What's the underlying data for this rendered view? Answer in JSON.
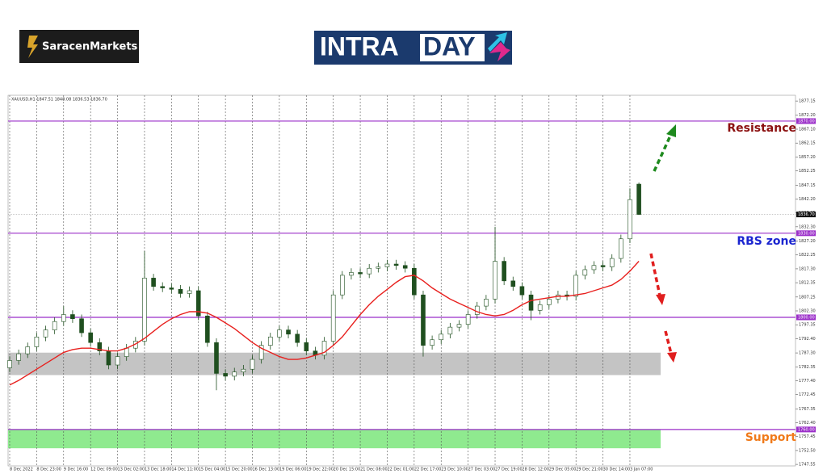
{
  "header": {
    "brand": "SaracenMarkets",
    "banner_left": "INTRA",
    "banner_right": "DAY"
  },
  "chart_data": {
    "type": "candlestick",
    "title": "XAUUSD,H1  1847.51 1848.08 1836.53 1836.70",
    "categories": [
      "8 Dec 2022",
      null,
      null,
      "8 Dec 23:00",
      null,
      null,
      "9 Dec 16:00",
      null,
      null,
      "12 Dec 09:00",
      null,
      null,
      "13 Dec 02:00",
      null,
      null,
      "13 Dec 18:00",
      null,
      null,
      "14 Dec 11:00",
      null,
      null,
      "15 Dec 04:00",
      null,
      null,
      "15 Dec 20:00",
      null,
      null,
      "16 Dec 13:00",
      null,
      null,
      "19 Dec 06:00",
      null,
      null,
      "19 Dec 22:00",
      null,
      null,
      "20 Dec 15:00",
      null,
      null,
      "21 Dec 08:00",
      null,
      null,
      "22 Dec 01:00",
      null,
      null,
      "22 Dec 17:00",
      null,
      null,
      "23 Dec 10:00",
      null,
      null,
      "27 Dec 03:00",
      null,
      null,
      "27 Dec 19:00",
      null,
      null,
      "28 Dec 12:00",
      null,
      null,
      "29 Dec 05:00",
      null,
      null,
      "29 Dec 21:00",
      null,
      null,
      "30 Dec 14:00",
      null,
      null,
      "3 Jan 07:00",
      null
    ],
    "open": [
      1782,
      1784.6,
      1787,
      1789.5,
      1793,
      1795.5,
      1798.5,
      1801,
      1799.5,
      1794.5,
      1791,
      1788,
      1783,
      1786,
      1789,
      1791.5,
      1814,
      1811,
      1810.5,
      1810,
      1808.5,
      1809.5,
      1800.5,
      1791,
      1780,
      1779,
      1780.5,
      1781.5,
      1785,
      1790,
      1793,
      1795.5,
      1794,
      1791,
      1788,
      1786.5,
      1791.5,
      1808,
      1815,
      1816,
      1815.5,
      1817.5,
      1818,
      1819,
      1818.5,
      1817.5,
      1808,
      1790,
      1792,
      1794,
      1796.5,
      1797.5,
      1801,
      1804,
      1806.5,
      1820,
      1813,
      1811,
      1808,
      1802.5,
      1804.5,
      1806.5,
      1808,
      1807.5,
      1815,
      1817,
      1818.5,
      1818,
      1821,
      1828,
      1847.51
    ],
    "high": [
      1786.1,
      1788.5,
      1791,
      1794.5,
      1797,
      1800,
      1804,
      1802.5,
      1801,
      1796,
      1792.5,
      1789.5,
      1787.5,
      1790.5,
      1793,
      1823.6,
      1815.5,
      1812.5,
      1812,
      1811.5,
      1811,
      1811,
      1802,
      1792.5,
      1781.5,
      1782,
      1783,
      1786.5,
      1791.5,
      1794.5,
      1797,
      1797,
      1795.5,
      1792.5,
      1789.5,
      1793,
      1809.5,
      1816.5,
      1817.5,
      1817.5,
      1819,
      1819.5,
      1820.5,
      1820.5,
      1820,
      1819,
      1809.5,
      1793.5,
      1795.5,
      1798,
      1799,
      1802.5,
      1805.5,
      1808,
      1832.3,
      1821.5,
      1814.5,
      1812.5,
      1809.5,
      1806,
      1808,
      1809.5,
      1809.5,
      1816.5,
      1818.5,
      1820,
      1820,
      1822.5,
      1829.5,
      1846,
      1848.08
    ],
    "low": [
      1780.5,
      1783.1,
      1785.5,
      1788,
      1791.5,
      1794,
      1797,
      1798,
      1793,
      1789.5,
      1786.5,
      1781.5,
      1781.5,
      1784.5,
      1787.5,
      1790,
      1809.5,
      1809,
      1808.5,
      1807,
      1807,
      1799,
      1789.5,
      1774,
      1777.5,
      1777.5,
      1779,
      1780,
      1783.5,
      1788.5,
      1791.5,
      1792.5,
      1789.5,
      1786.5,
      1785,
      1785,
      1790,
      1806.5,
      1813.5,
      1814,
      1814,
      1816,
      1816.5,
      1817,
      1816,
      1806.5,
      1786,
      1788.5,
      1790.5,
      1792.5,
      1795,
      1796,
      1799.5,
      1802.5,
      1805,
      1811.5,
      1809.5,
      1806.5,
      1799,
      1801,
      1803,
      1805,
      1806,
      1806,
      1813.5,
      1815.5,
      1816.5,
      1816.5,
      1819.5,
      1826.5,
      1836.53
    ],
    "close": [
      1784.6,
      1787,
      1789.5,
      1793,
      1795.5,
      1798.5,
      1801,
      1799.5,
      1794.5,
      1791,
      1788,
      1783,
      1786,
      1789,
      1791.5,
      1814,
      1811,
      1810.5,
      1810,
      1808.5,
      1809.5,
      1800.5,
      1791,
      1780,
      1779,
      1780.5,
      1781.5,
      1785,
      1790,
      1793,
      1795.5,
      1794,
      1791,
      1788,
      1786.5,
      1791.5,
      1808,
      1815,
      1816,
      1815.5,
      1817.5,
      1818,
      1819,
      1818.5,
      1817.5,
      1808,
      1790,
      1792,
      1794,
      1796.5,
      1797.5,
      1801,
      1804,
      1806.5,
      1820,
      1813,
      1811,
      1808,
      1802.5,
      1804.5,
      1806.5,
      1808,
      1807.5,
      1815,
      1817,
      1818.5,
      1818,
      1821,
      1828,
      1842,
      1836.7
    ],
    "ma": [
      1775.9,
      1777.5,
      1779.5,
      1781.5,
      1783.5,
      1785.5,
      1787.5,
      1788.5,
      1789,
      1789,
      1788.5,
      1788,
      1788,
      1789,
      1790.5,
      1792.5,
      1795,
      1797.5,
      1799.5,
      1801,
      1802,
      1802,
      1801.5,
      1800,
      1798,
      1796,
      1793.5,
      1791,
      1789,
      1787.5,
      1786,
      1785,
      1785,
      1785.5,
      1786.5,
      1787.5,
      1790,
      1793,
      1797,
      1801,
      1804.5,
      1807.5,
      1810,
      1812.5,
      1814.5,
      1815,
      1813,
      1810.5,
      1808.5,
      1806.5,
      1805,
      1803.5,
      1802,
      1801,
      1800.5,
      1801,
      1802.5,
      1804.5,
      1806,
      1806.5,
      1807,
      1807.5,
      1807.5,
      1808,
      1808.5,
      1809.5,
      1810.5,
      1811.5,
      1813.5,
      1816.5,
      1820
    ],
    "up_color": "#ffffff",
    "down_color": "#1f4f1f",
    "wick_color": "#1f4f1f",
    "ma_color": "#e8201e",
    "ylim": [
      1747,
      1879.2
    ],
    "yticks": [
      1877.15,
      {
        "value": 1872.2,
        "label": "1872.20"
      },
      {
        "value": 1867.1,
        "label": "1867.10"
      },
      1862.15,
      {
        "value": 1857.2,
        "label": "1857.20"
      },
      1852.25,
      1847.15,
      {
        "value": 1842.2,
        "label": "1842.20"
      },
      1837.25,
      {
        "value": 1832.3,
        "label": "1832.30"
      },
      {
        "value": 1827.2,
        "label": "1827.20"
      },
      1822.25,
      {
        "value": 1817.3,
        "label": "1817.30"
      },
      1812.35,
      1807.25,
      {
        "value": 1802.3,
        "label": "1802.30"
      },
      1797.35,
      {
        "value": 1792.4,
        "label": "1792.40"
      },
      {
        "value": 1787.3,
        "label": "1787.30"
      },
      1782.35,
      {
        "value": 1777.4,
        "label": "1777.40"
      },
      1772.45,
      1767.35,
      {
        "value": 1762.4,
        "label": "1762.40"
      },
      1757.45,
      {
        "value": 1752.5,
        "label": "1752.50"
      },
      1747.55
    ],
    "levels": [
      {
        "value": 1870,
        "label": "1870.00"
      },
      {
        "value": 1830,
        "label": "1830.00"
      },
      {
        "value": 1800,
        "label": "1800.00"
      },
      {
        "value": 1760,
        "label": "1760.00"
      }
    ],
    "level_color": "#9b2fc9",
    "last_price": {
      "value": 1836.7,
      "label": "1836.70"
    },
    "zones": [
      {
        "from": 1779.4,
        "to": 1787.4,
        "color": "#c4c4c4"
      },
      {
        "from": 1753.3,
        "to": 1760,
        "color": "#8fea8f"
      }
    ],
    "annotations": [
      "Resistance",
      "RBS zone",
      "Support"
    ]
  }
}
